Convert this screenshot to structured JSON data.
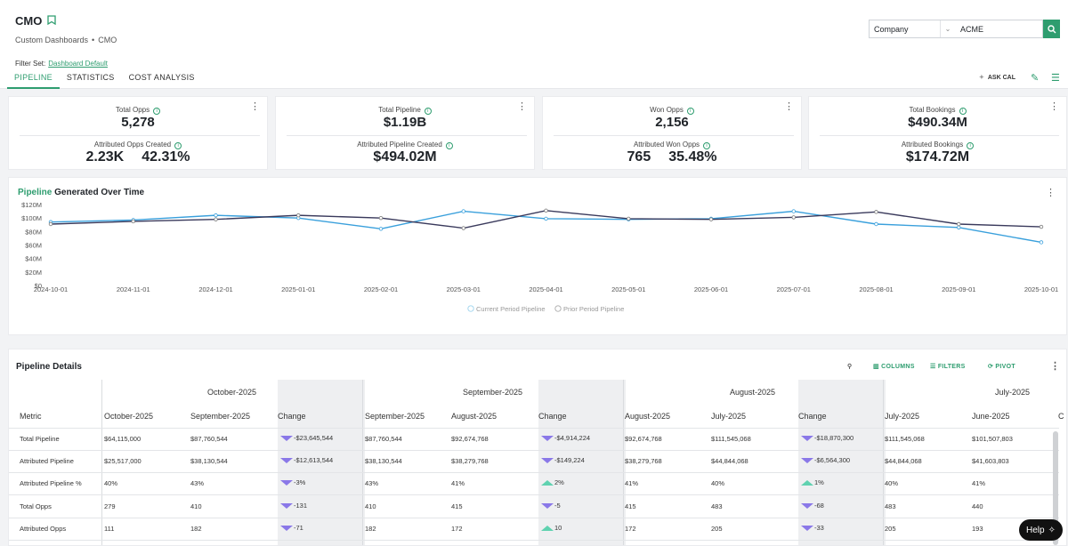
{
  "header": {
    "title": "CMO",
    "breadcrumb": [
      "Custom Dashboards",
      "CMO"
    ],
    "breadcrumb_sep": "•",
    "filterset_label": "Filter Set:",
    "filterset_value": "Dashboard Default",
    "company_select": "Company",
    "company_value": "ACME",
    "icons": {
      "bookmark": "bookmark-icon",
      "search": "search-icon"
    }
  },
  "tabs": [
    {
      "label": "PIPELINE",
      "active": true
    },
    {
      "label": "STATISTICS",
      "active": false
    },
    {
      "label": "COST ANALYSIS",
      "active": false
    }
  ],
  "toolbar": {
    "ask_cal": "ASK CAL"
  },
  "kpis": [
    {
      "label": "Total Opps",
      "value": "5,278",
      "label2": "Attributed Opps Created",
      "value2a": "2.23K",
      "value2b": "42.31%"
    },
    {
      "label": "Total Pipeline",
      "value": "$1.19B",
      "label2": "Attributed Pipeline Created",
      "value2": "$494.02M"
    },
    {
      "label": "Won Opps",
      "value": "2,156",
      "label2": "Attributed Won Opps",
      "value2a": "765",
      "value2b": "35.48%"
    },
    {
      "label": "Total Bookings",
      "value": "$490.34M",
      "label2": "Attributed Bookings",
      "value2": "$174.72M"
    }
  ],
  "chart": {
    "title_highlight": "Pipeline",
    "title_rest": "Generated Over Time",
    "legend": [
      "Current Period Pipeline",
      "Prior Period Pipeline"
    ],
    "colors": {
      "current": "#3aa0dc",
      "prior": "#3a3a5c"
    }
  },
  "chart_data": {
    "type": "line",
    "x": [
      "2024-10-01",
      "2024-11-01",
      "2024-12-01",
      "2025-01-01",
      "2025-02-01",
      "2025-03-01",
      "2025-04-01",
      "2025-05-01",
      "2025-06-01",
      "2025-07-01",
      "2025-08-01",
      "2025-09-01",
      "2025-10-01"
    ],
    "y_ticks": [
      "$0",
      "$20M",
      "$40M",
      "$60M",
      "$80M",
      "$100M",
      "$120M"
    ],
    "ylim": [
      0,
      120
    ],
    "series": [
      {
        "name": "Current Period Pipeline",
        "values": [
          94,
          97,
          104,
          100,
          84,
          110,
          99,
          98,
          99,
          110,
          91,
          86,
          64
        ]
      },
      {
        "name": "Prior Period Pipeline",
        "values": [
          91,
          95,
          98,
          104,
          100,
          85,
          111,
          99,
          98,
          101,
          109,
          91,
          87
        ]
      }
    ]
  },
  "table": {
    "title": "Pipeline Details",
    "tools": {
      "columns": "COLUMNS",
      "filters": "FILTERS",
      "pivot": "PIVOT"
    },
    "metric_header": "Metric",
    "months": [
      "October-2025",
      "September-2025",
      "August-2025",
      "July-2025"
    ],
    "col_headers": [
      "October-2025",
      "September-2025",
      "Change",
      "September-2025",
      "August-2025",
      "Change",
      "August-2025",
      "July-2025",
      "Change",
      "July-2025",
      "June-2025"
    ],
    "rows": [
      {
        "metric": "Total Pipeline",
        "cells": [
          "$64,115,000",
          "$87,760,544",
          "-$23,645,544",
          "$87,760,544",
          "$92,674,768",
          "-$4,914,224",
          "$92,674,768",
          "$111,545,068",
          "-$18,870,300",
          "$111,545,068",
          "$101,507,803"
        ],
        "dirs": [
          "down",
          "down",
          "down"
        ]
      },
      {
        "metric": "Attributed Pipeline",
        "cells": [
          "$25,517,000",
          "$38,130,544",
          "-$12,613,544",
          "$38,130,544",
          "$38,279,768",
          "-$149,224",
          "$38,279,768",
          "$44,844,068",
          "-$6,564,300",
          "$44,844,068",
          "$41,603,803"
        ],
        "dirs": [
          "down",
          "down",
          "down"
        ]
      },
      {
        "metric": "Attributed Pipeline %",
        "cells": [
          "40%",
          "43%",
          "-3%",
          "43%",
          "41%",
          "2%",
          "41%",
          "40%",
          "1%",
          "40%",
          "41%"
        ],
        "dirs": [
          "down",
          "up",
          "up"
        ]
      },
      {
        "metric": "Total Opps",
        "cells": [
          "279",
          "410",
          "-131",
          "410",
          "415",
          "-5",
          "415",
          "483",
          "-68",
          "483",
          "440"
        ],
        "dirs": [
          "down",
          "down",
          "down"
        ]
      },
      {
        "metric": "Attributed Opps",
        "cells": [
          "111",
          "182",
          "-71",
          "182",
          "172",
          "10",
          "172",
          "205",
          "-33",
          "205",
          "193"
        ],
        "dirs": [
          "down",
          "up",
          "down"
        ]
      }
    ]
  },
  "help": {
    "label": "Help"
  }
}
